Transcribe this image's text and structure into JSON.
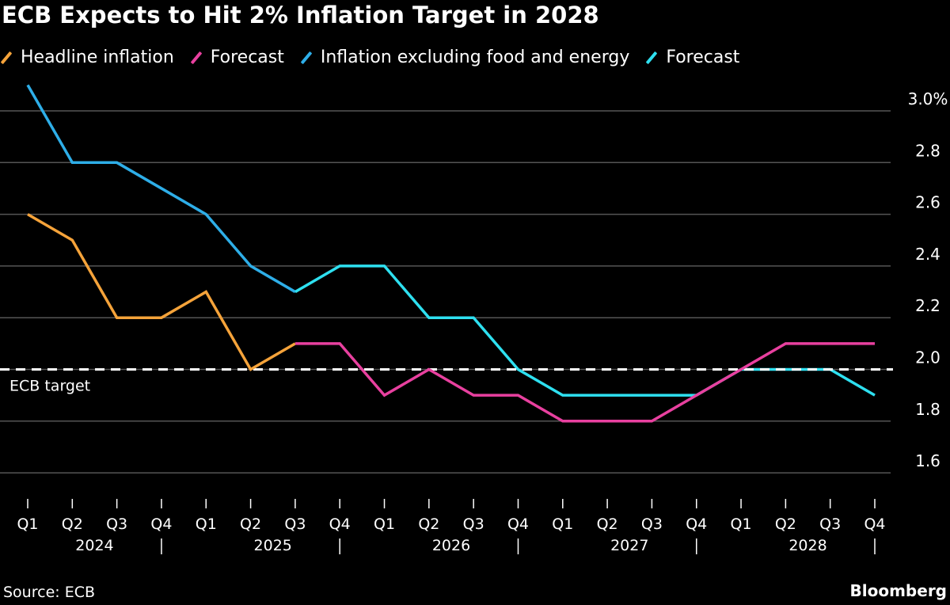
{
  "title": "ECB Expects to Hit 2% Inflation Target in 2028",
  "source": "Source: ECB",
  "brand": "Bloomberg",
  "chart_data": {
    "type": "line",
    "title": "ECB Expects to Hit 2% Inflation Target in 2028",
    "categories": [
      "Q1 2024",
      "Q2 2024",
      "Q3 2024",
      "Q4 2024",
      "Q1 2025",
      "Q2 2025",
      "Q3 2025",
      "Q4 2025",
      "Q1 2026",
      "Q2 2026",
      "Q3 2026",
      "Q4 2026",
      "Q1 2027",
      "Q2 2027",
      "Q3 2027",
      "Q4 2027",
      "Q1 2028",
      "Q2 2028",
      "Q3 2028",
      "Q4 2028"
    ],
    "quarter_labels": [
      "Q1",
      "Q2",
      "Q3",
      "Q4",
      "Q1",
      "Q2",
      "Q3",
      "Q4",
      "Q1",
      "Q2",
      "Q3",
      "Q4",
      "Q1",
      "Q2",
      "Q3",
      "Q4",
      "Q1",
      "Q2",
      "Q3",
      "Q4"
    ],
    "year_labels": [
      "2024",
      "2025",
      "2026",
      "2027",
      "2028"
    ],
    "ylim": [
      1.5,
      3.1
    ],
    "yticks": [
      1.6,
      1.8,
      2.0,
      2.2,
      2.4,
      2.6,
      2.8,
      3.0
    ],
    "ytick_labels": [
      "1.6",
      "1.8",
      "2.0",
      "2.2",
      "2.4",
      "2.6",
      "2.8",
      "3.0%"
    ],
    "grid": true,
    "legend_position": "top-left",
    "series": [
      {
        "name": "Headline inflation",
        "color": "#f5a33a",
        "values": [
          2.6,
          2.5,
          2.2,
          2.2,
          2.3,
          2.0,
          2.1,
          null,
          null,
          null,
          null,
          null,
          null,
          null,
          null,
          null,
          null,
          null,
          null,
          null
        ]
      },
      {
        "name": "Forecast",
        "color": "#e8409f",
        "values": [
          null,
          null,
          null,
          null,
          null,
          null,
          2.1,
          2.1,
          1.9,
          2.0,
          1.9,
          1.9,
          1.8,
          1.8,
          1.8,
          1.9,
          2.0,
          2.1,
          2.1,
          2.1
        ]
      },
      {
        "name": "Inflation excluding food and energy",
        "color": "#2eaee8",
        "values": [
          3.1,
          2.8,
          2.8,
          2.7,
          2.6,
          2.4,
          2.3,
          null,
          null,
          null,
          null,
          null,
          null,
          null,
          null,
          null,
          null,
          null,
          null,
          null
        ]
      },
      {
        "name": "Forecast",
        "color": "#2ee0f0",
        "values": [
          null,
          null,
          null,
          null,
          null,
          null,
          2.3,
          2.4,
          2.4,
          2.2,
          2.2,
          2.0,
          1.9,
          1.9,
          1.9,
          1.9,
          2.0,
          2.0,
          2.0,
          1.9
        ]
      }
    ],
    "annotations": [
      {
        "label": "ECB target",
        "value": 2.0
      }
    ]
  }
}
